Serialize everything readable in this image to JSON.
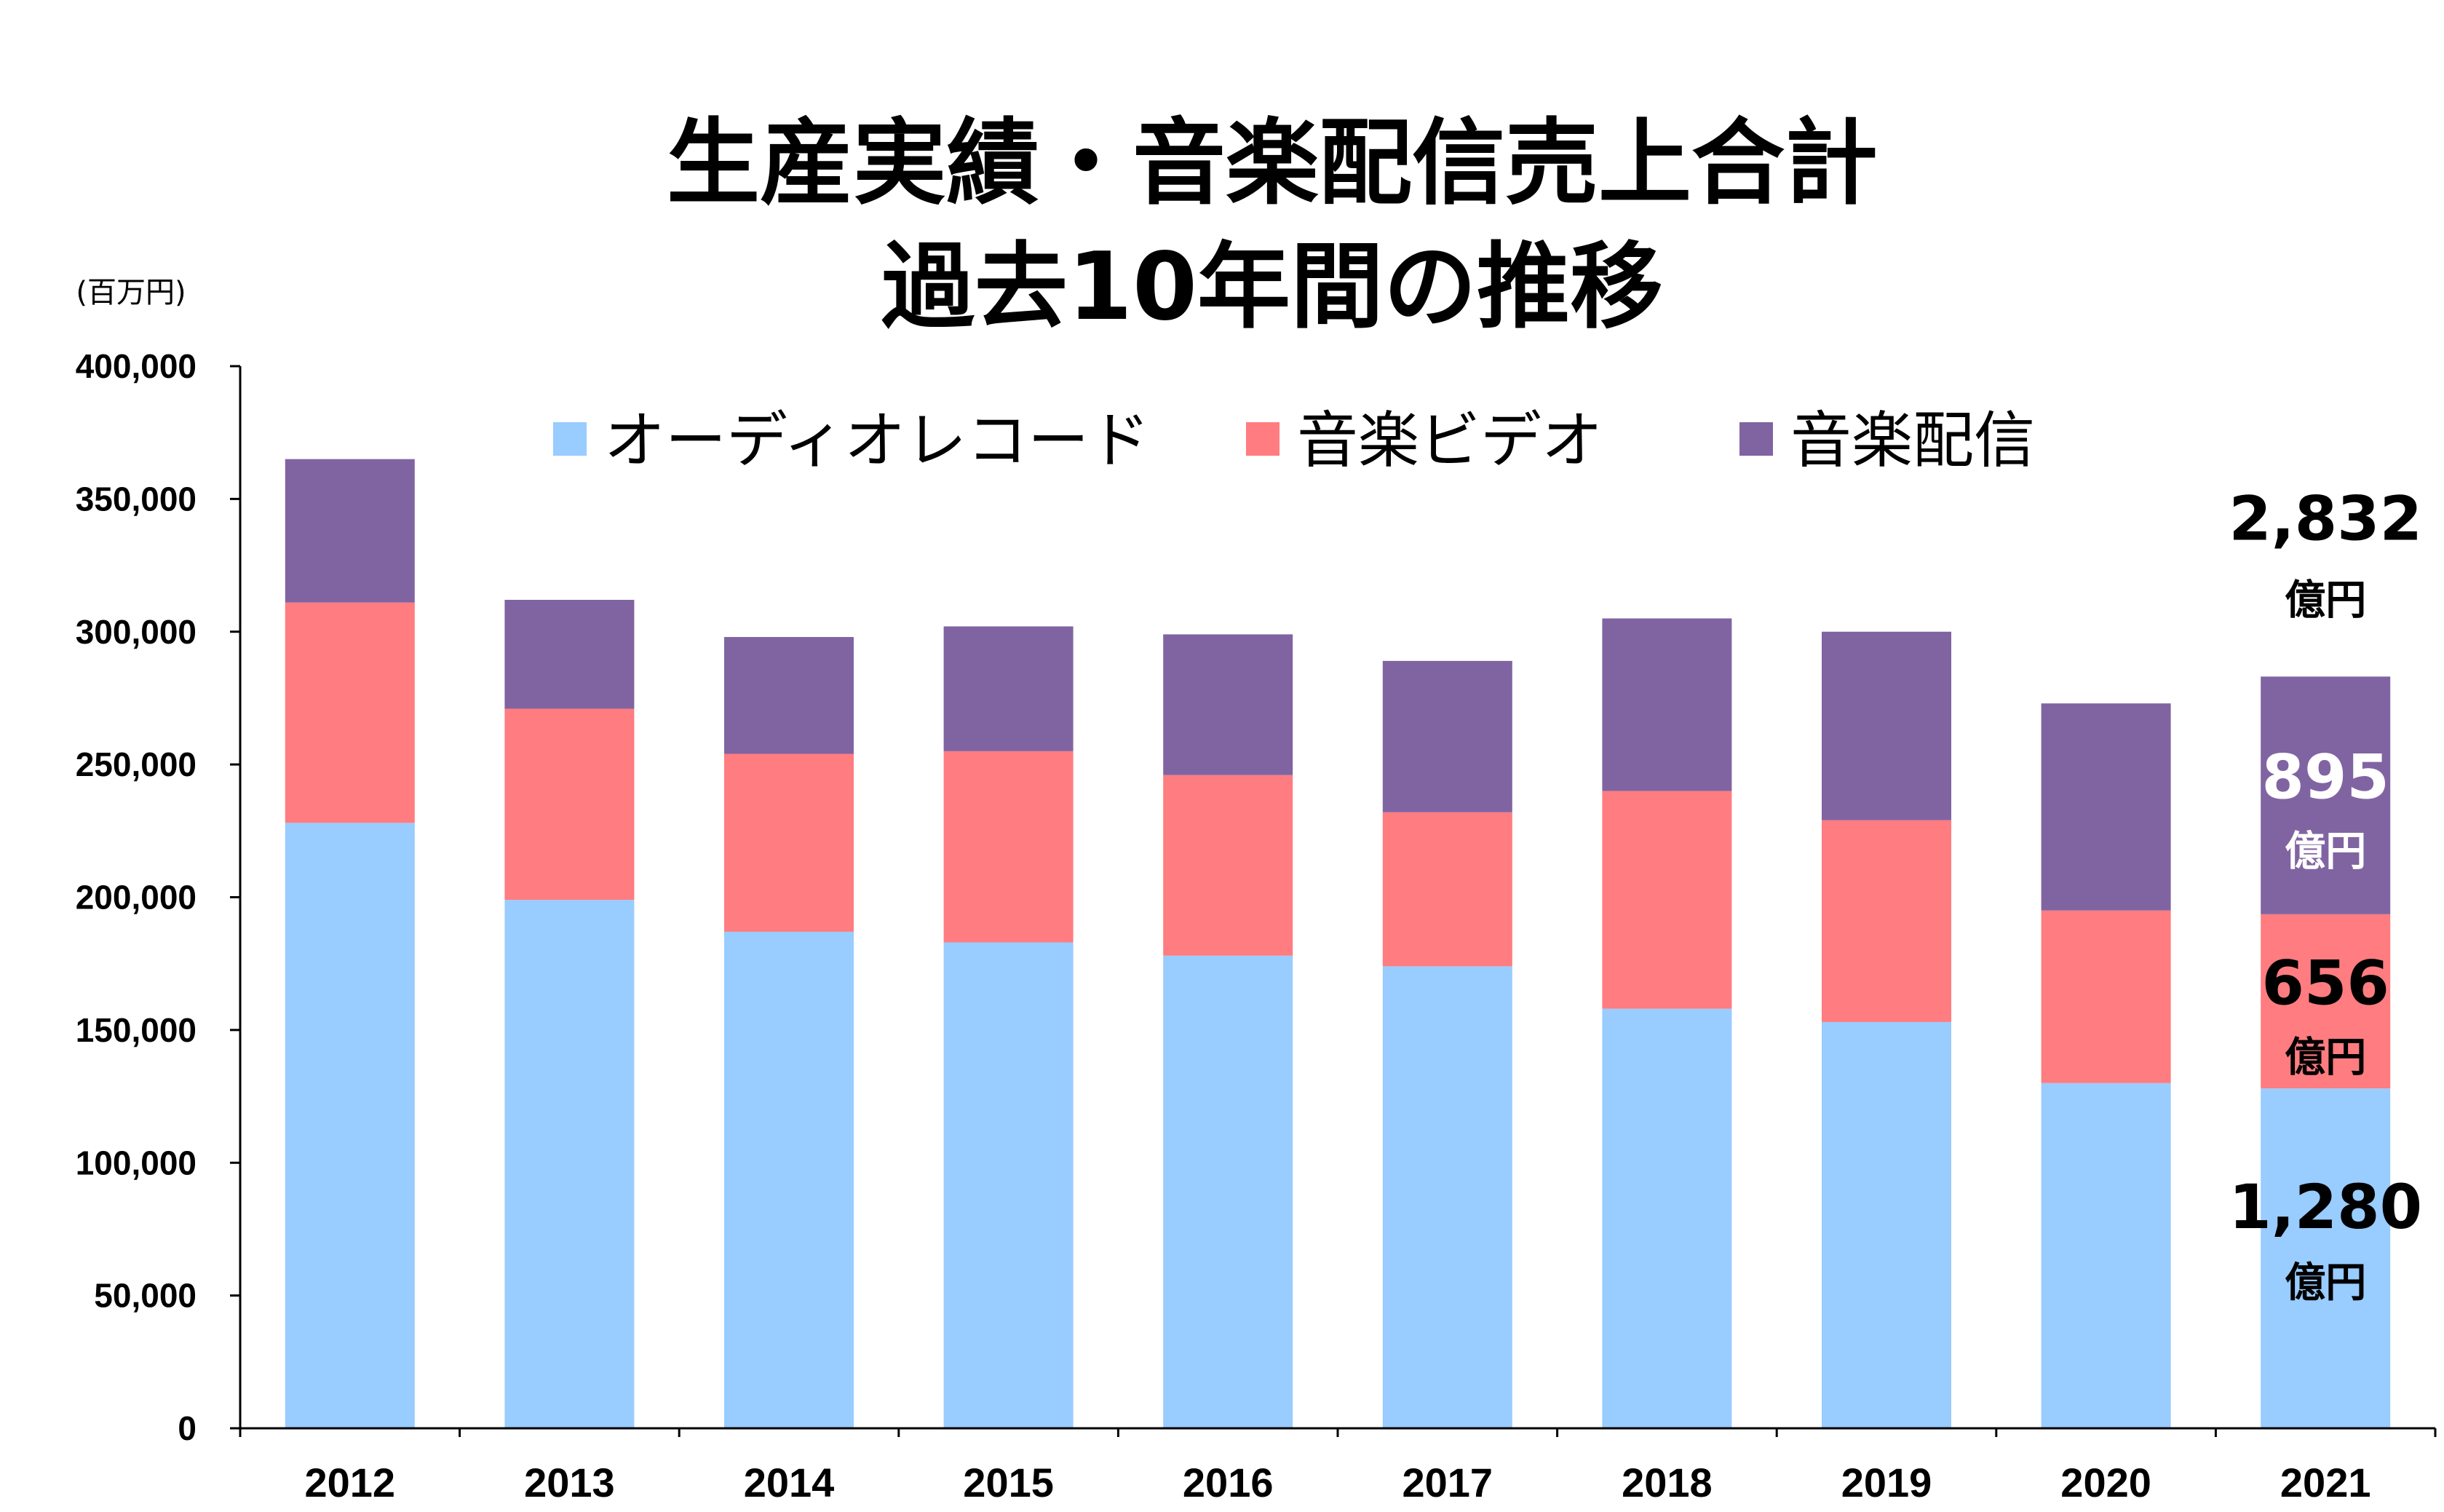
{
  "chart_data": {
    "type": "bar",
    "stacked": true,
    "title": [
      "生産実績・音楽配信売上合計",
      "過去10年間の推移"
    ],
    "y_unit": "(百万円)",
    "categories": [
      "2012",
      "2013",
      "2014",
      "2015",
      "2016",
      "2017",
      "2018",
      "2019",
      "2020",
      "2021"
    ],
    "series": [
      {
        "name": "オーディオレコード",
        "color": "#99CCFF",
        "values": [
          228000,
          199000,
          187000,
          183000,
          178000,
          174000,
          158000,
          153000,
          130000,
          128000
        ]
      },
      {
        "name": "音楽ビデオ",
        "color": "#FF7C80",
        "values": [
          83000,
          72000,
          67000,
          72000,
          68000,
          58000,
          82000,
          76000,
          65000,
          65600
        ]
      },
      {
        "name": "音楽配信",
        "color": "#8064A2",
        "values": [
          54000,
          41000,
          44000,
          47000,
          53000,
          57000,
          65000,
          71000,
          78000,
          89500
        ]
      }
    ],
    "y_ticks": [
      "0",
      "50,000",
      "100,000",
      "150,000",
      "200,000",
      "250,000",
      "300,000",
      "350,000",
      "400,000"
    ],
    "ylim": [
      0,
      400000
    ],
    "legend_position": "top",
    "grid": false,
    "annotations": [
      {
        "category": "2021",
        "target": "total",
        "value": "2,832",
        "unit": "億円",
        "color": "#000000"
      },
      {
        "category": "2021",
        "target": "音楽配信",
        "value": "895",
        "unit": "億円",
        "color": "#FFFFFF"
      },
      {
        "category": "2021",
        "target": "音楽ビデオ",
        "value": "656",
        "unit": "億円",
        "color": "#000000"
      },
      {
        "category": "2021",
        "target": "オーディオレコード",
        "value": "1,280",
        "unit": "億円",
        "color": "#000000"
      }
    ]
  }
}
